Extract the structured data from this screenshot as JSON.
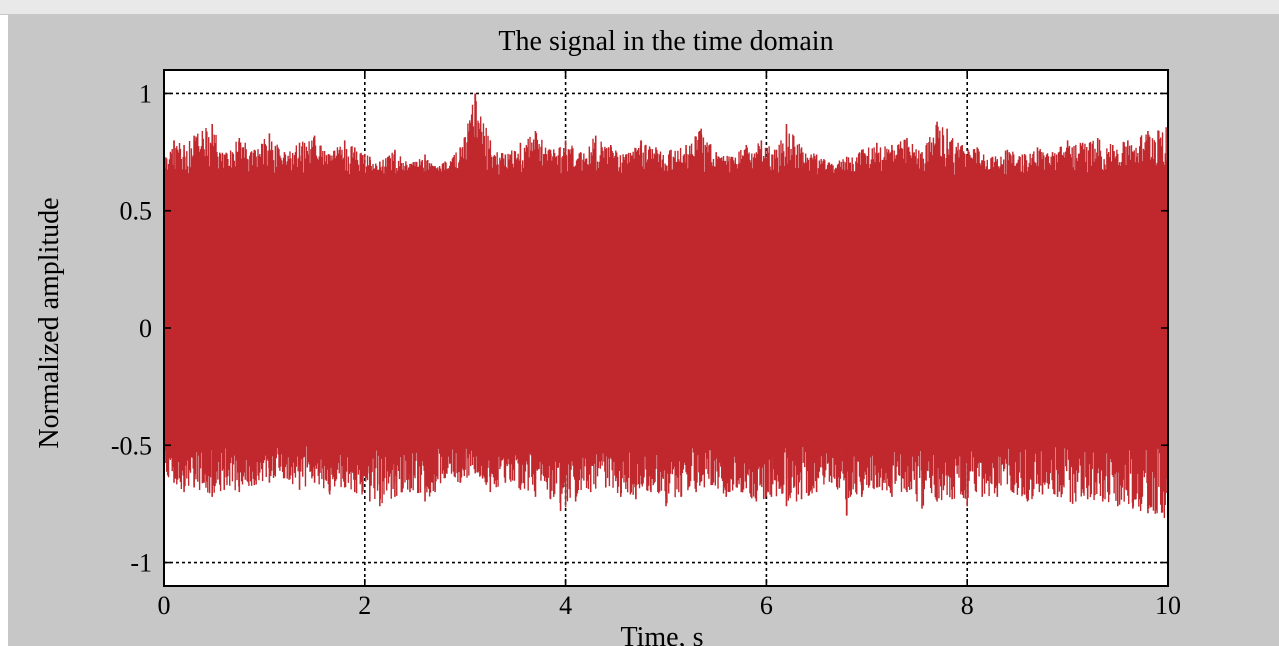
{
  "chart_data": {
    "type": "line",
    "title": "The signal in the time domain",
    "xlabel": "Time, s",
    "ylabel": "Normalized amplitude",
    "xlim": [
      0,
      10
    ],
    "ylim": [
      -1.1,
      1.1
    ],
    "xticks": [
      0,
      2,
      4,
      6,
      8,
      10
    ],
    "xtick_labels": [
      "0",
      "2",
      "4",
      "6",
      "8",
      "10"
    ],
    "yticks": [
      -1,
      -0.5,
      0,
      0.5,
      1
    ],
    "ytick_labels": [
      "-1",
      "-0.5",
      "0",
      "0.5",
      "1"
    ],
    "grid": true,
    "series": [
      {
        "color": "#ff0000",
        "envelope_color": "#c0282d",
        "peak": [
          1.0,
          3.1
        ],
        "min_value": -0.8,
        "dense_band": [
          -0.5,
          0.65
        ],
        "upper_peaks": [
          [
            0.0,
            0.72
          ],
          [
            0.1,
            0.8
          ],
          [
            0.2,
            0.78
          ],
          [
            0.3,
            0.82
          ],
          [
            0.48,
            0.87
          ],
          [
            0.6,
            0.74
          ],
          [
            0.75,
            0.81
          ],
          [
            0.9,
            0.76
          ],
          [
            1.05,
            0.83
          ],
          [
            1.2,
            0.75
          ],
          [
            1.35,
            0.79
          ],
          [
            1.5,
            0.82
          ],
          [
            1.65,
            0.74
          ],
          [
            1.8,
            0.8
          ],
          [
            1.9,
            0.77
          ],
          [
            2.05,
            0.73
          ],
          [
            2.15,
            0.71
          ],
          [
            2.3,
            0.76
          ],
          [
            2.45,
            0.7
          ],
          [
            2.6,
            0.74
          ],
          [
            2.7,
            0.69
          ],
          [
            2.8,
            0.71
          ],
          [
            2.95,
            0.77
          ],
          [
            3.1,
            1.0
          ],
          [
            3.25,
            0.8
          ],
          [
            3.4,
            0.74
          ],
          [
            3.55,
            0.79
          ],
          [
            3.7,
            0.84
          ],
          [
            3.85,
            0.76
          ],
          [
            4.0,
            0.8
          ],
          [
            4.15,
            0.75
          ],
          [
            4.3,
            0.82
          ],
          [
            4.45,
            0.78
          ],
          [
            4.6,
            0.74
          ],
          [
            4.75,
            0.8
          ],
          [
            4.9,
            0.77
          ],
          [
            5.05,
            0.76
          ],
          [
            5.2,
            0.78
          ],
          [
            5.35,
            0.85
          ],
          [
            5.5,
            0.75
          ],
          [
            5.65,
            0.73
          ],
          [
            5.8,
            0.78
          ],
          [
            5.95,
            0.8
          ],
          [
            6.1,
            0.76
          ],
          [
            6.2,
            0.87
          ],
          [
            6.35,
            0.77
          ],
          [
            6.5,
            0.74
          ],
          [
            6.65,
            0.7
          ],
          [
            6.8,
            0.73
          ],
          [
            6.95,
            0.76
          ],
          [
            7.1,
            0.79
          ],
          [
            7.25,
            0.78
          ],
          [
            7.4,
            0.81
          ],
          [
            7.55,
            0.75
          ],
          [
            7.7,
            0.88
          ],
          [
            7.8,
            0.85
          ],
          [
            7.95,
            0.78
          ],
          [
            8.1,
            0.77
          ],
          [
            8.25,
            0.73
          ],
          [
            8.4,
            0.76
          ],
          [
            8.55,
            0.74
          ],
          [
            8.7,
            0.77
          ],
          [
            8.85,
            0.75
          ],
          [
            9.0,
            0.8
          ],
          [
            9.15,
            0.79
          ],
          [
            9.3,
            0.81
          ],
          [
            9.45,
            0.78
          ],
          [
            9.6,
            0.8
          ],
          [
            9.8,
            0.84
          ],
          [
            10.0,
            0.92
          ]
        ],
        "lower_peaks": [
          [
            0.0,
            -0.62
          ],
          [
            0.1,
            -0.66
          ],
          [
            0.2,
            -0.7
          ],
          [
            0.3,
            -0.68
          ],
          [
            0.48,
            -0.72
          ],
          [
            0.6,
            -0.69
          ],
          [
            0.75,
            -0.7
          ],
          [
            0.9,
            -0.67
          ],
          [
            1.05,
            -0.66
          ],
          [
            1.2,
            -0.64
          ],
          [
            1.35,
            -0.69
          ],
          [
            1.5,
            -0.66
          ],
          [
            1.65,
            -0.71
          ],
          [
            1.8,
            -0.68
          ],
          [
            1.9,
            -0.7
          ],
          [
            2.05,
            -0.74
          ],
          [
            2.15,
            -0.76
          ],
          [
            2.3,
            -0.72
          ],
          [
            2.45,
            -0.7
          ],
          [
            2.6,
            -0.74
          ],
          [
            2.7,
            -0.7
          ],
          [
            2.8,
            -0.64
          ],
          [
            2.95,
            -0.66
          ],
          [
            3.1,
            -0.62
          ],
          [
            3.25,
            -0.7
          ],
          [
            3.4,
            -0.66
          ],
          [
            3.55,
            -0.69
          ],
          [
            3.7,
            -0.72
          ],
          [
            3.85,
            -0.73
          ],
          [
            3.95,
            -0.78
          ],
          [
            4.1,
            -0.74
          ],
          [
            4.25,
            -0.7
          ],
          [
            4.4,
            -0.68
          ],
          [
            4.55,
            -0.72
          ],
          [
            4.7,
            -0.73
          ],
          [
            4.85,
            -0.7
          ],
          [
            5.0,
            -0.76
          ],
          [
            5.15,
            -0.72
          ],
          [
            5.3,
            -0.7
          ],
          [
            5.45,
            -0.67
          ],
          [
            5.6,
            -0.72
          ],
          [
            5.75,
            -0.7
          ],
          [
            5.9,
            -0.74
          ],
          [
            6.05,
            -0.72
          ],
          [
            6.2,
            -0.76
          ],
          [
            6.35,
            -0.73
          ],
          [
            6.5,
            -0.7
          ],
          [
            6.65,
            -0.66
          ],
          [
            6.8,
            -0.74
          ],
          [
            6.95,
            -0.72
          ],
          [
            7.1,
            -0.68
          ],
          [
            7.25,
            -0.72
          ],
          [
            7.4,
            -0.7
          ],
          [
            7.55,
            -0.77
          ],
          [
            7.7,
            -0.74
          ],
          [
            7.85,
            -0.73
          ],
          [
            8.0,
            -0.76
          ],
          [
            8.15,
            -0.72
          ],
          [
            8.3,
            -0.72
          ],
          [
            8.45,
            -0.7
          ],
          [
            8.6,
            -0.74
          ],
          [
            8.75,
            -0.71
          ],
          [
            8.9,
            -0.72
          ],
          [
            9.05,
            -0.75
          ],
          [
            9.2,
            -0.73
          ],
          [
            9.35,
            -0.74
          ],
          [
            9.5,
            -0.76
          ],
          [
            9.65,
            -0.77
          ],
          [
            9.8,
            -0.79
          ],
          [
            10.0,
            -0.82
          ]
        ]
      }
    ]
  }
}
